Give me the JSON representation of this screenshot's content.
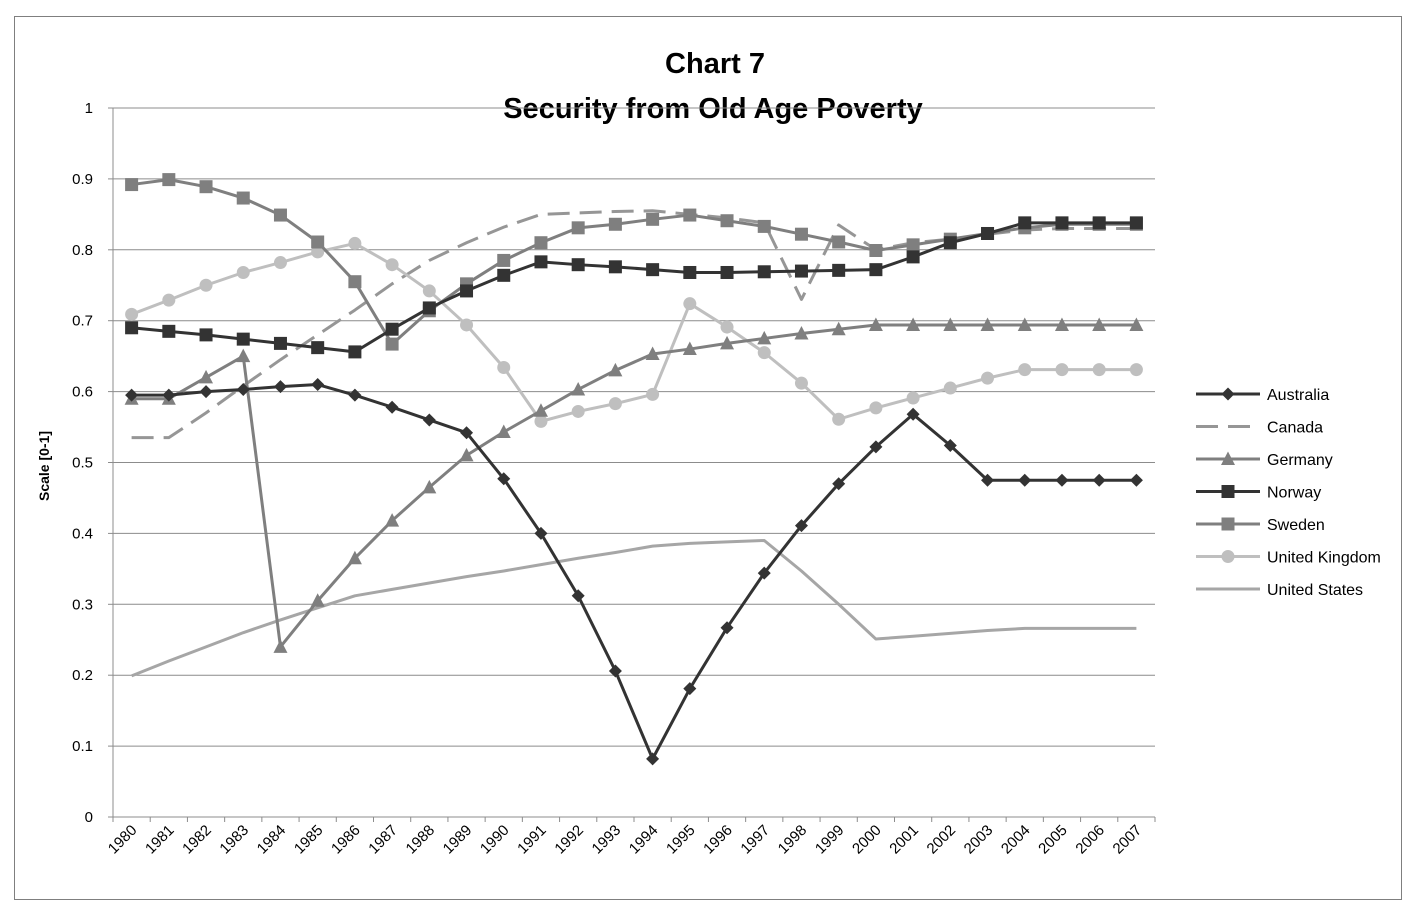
{
  "chart_data": {
    "type": "line",
    "title": "Chart 7",
    "subtitle": "Security from Old Age Poverty",
    "xlabel": "",
    "ylabel": "Scale [0-1]",
    "ylim": [
      0,
      1
    ],
    "yticks": [
      "0",
      "0.1",
      "0.2",
      "0.3",
      "0.4",
      "0.5",
      "0.6",
      "0.7",
      "0.8",
      "0.9",
      "1"
    ],
    "grid": true,
    "legend_position": "right",
    "categories": [
      "1980",
      "1981",
      "1982",
      "1983",
      "1984",
      "1985",
      "1986",
      "1987",
      "1988",
      "1989",
      "1990",
      "1991",
      "1992",
      "1993",
      "1994",
      "1995",
      "1996",
      "1997",
      "1998",
      "1999",
      "2000",
      "2001",
      "2002",
      "2003",
      "2004",
      "2005",
      "2006",
      "2007"
    ],
    "series": [
      {
        "name": "Australia",
        "color": "#333333",
        "marker": "diamond",
        "dash": false,
        "values": [
          0.595,
          0.595,
          0.6,
          0.603,
          0.607,
          0.61,
          0.595,
          0.578,
          0.56,
          0.542,
          0.477,
          0.4,
          0.312,
          0.206,
          0.082,
          0.181,
          0.267,
          0.344,
          0.411,
          0.47,
          0.522,
          0.568,
          0.524,
          0.475,
          0.475,
          0.475,
          0.475,
          0.475
        ]
      },
      {
        "name": "Canada",
        "color": "#969696",
        "marker": "none",
        "dash": true,
        "values": [
          0.535,
          0.535,
          0.57,
          0.608,
          0.645,
          0.68,
          0.715,
          0.752,
          0.785,
          0.81,
          0.832,
          0.85,
          0.852,
          0.854,
          0.855,
          0.85,
          0.845,
          0.838,
          0.73,
          0.835,
          0.8,
          0.81,
          0.815,
          0.822,
          0.828,
          0.83,
          0.83,
          0.83
        ]
      },
      {
        "name": "Germany",
        "color": "#7f7f7f",
        "marker": "triangle",
        "dash": false,
        "values": [
          0.59,
          0.59,
          0.62,
          0.65,
          0.24,
          0.305,
          0.365,
          0.418,
          0.465,
          0.51,
          0.543,
          0.573,
          0.603,
          0.63,
          0.653,
          0.66,
          0.668,
          0.675,
          0.682,
          0.688,
          0.694,
          0.694,
          0.694,
          0.694,
          0.694,
          0.694,
          0.694,
          0.694
        ]
      },
      {
        "name": "Norway",
        "color": "#333333",
        "marker": "square",
        "dash": false,
        "values": [
          0.69,
          0.685,
          0.68,
          0.674,
          0.668,
          0.662,
          0.656,
          0.688,
          0.718,
          0.742,
          0.764,
          0.783,
          0.779,
          0.776,
          0.772,
          0.768,
          0.768,
          0.769,
          0.77,
          0.771,
          0.772,
          0.79,
          0.81,
          0.823,
          0.838,
          0.838,
          0.838,
          0.838
        ]
      },
      {
        "name": "Sweden",
        "color": "#7f7f7f",
        "marker": "square",
        "dash": false,
        "values": [
          0.892,
          0.899,
          0.889,
          0.873,
          0.849,
          0.811,
          0.755,
          0.667,
          0.714,
          0.752,
          0.785,
          0.81,
          0.831,
          0.836,
          0.843,
          0.849,
          0.841,
          0.833,
          0.822,
          0.811,
          0.799,
          0.807,
          0.815,
          0.823,
          0.831,
          0.836,
          0.836,
          0.836
        ]
      },
      {
        "name": "United Kingdom",
        "color": "#bfbfbf",
        "marker": "circle",
        "dash": false,
        "values": [
          0.709,
          0.729,
          0.75,
          0.768,
          0.782,
          0.797,
          0.809,
          0.779,
          0.742,
          0.694,
          0.634,
          0.558,
          0.572,
          0.583,
          0.596,
          0.724,
          0.691,
          0.655,
          0.612,
          0.561,
          0.577,
          0.591,
          0.605,
          0.619,
          0.631,
          0.631,
          0.631,
          0.631
        ]
      },
      {
        "name": "United States",
        "color": "#a6a6a6",
        "marker": "none",
        "dash": false,
        "values": [
          0.199,
          0.22,
          0.24,
          0.26,
          0.278,
          0.295,
          0.312,
          0.321,
          0.33,
          0.339,
          0.347,
          0.356,
          0.365,
          0.373,
          0.382,
          0.386,
          0.388,
          0.39,
          0.347,
          0.3,
          0.251,
          0.255,
          0.259,
          0.263,
          0.266,
          0.266,
          0.266,
          0.266
        ]
      }
    ]
  }
}
